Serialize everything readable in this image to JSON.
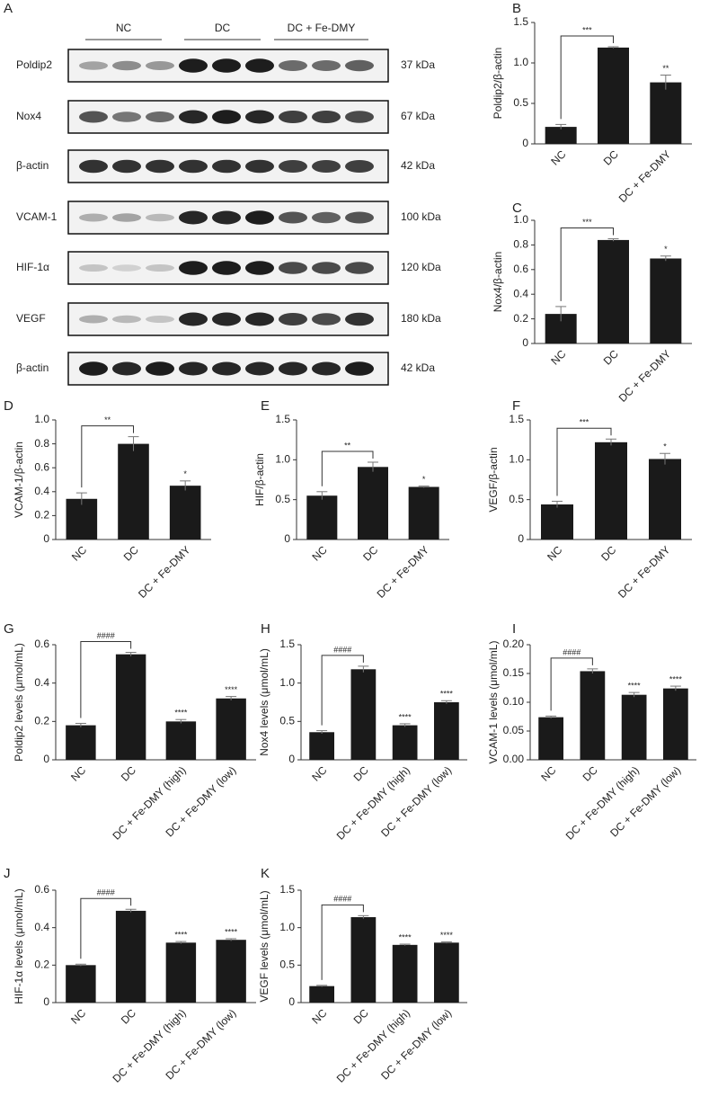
{
  "blot": {
    "label": "A",
    "groups": [
      "NC",
      "DC",
      "DC + Fe-DMY"
    ],
    "rows": [
      {
        "name": "Poldip2",
        "size": "37 kDa"
      },
      {
        "name": "Nox4",
        "size": "67 kDa"
      },
      {
        "name": "β-actin",
        "size": "42 kDa"
      },
      {
        "name": "VCAM-1",
        "size": "100 kDa"
      },
      {
        "name": "HIF-1α",
        "size": "120 kDa"
      },
      {
        "name": "VEGF",
        "size": "180 kDa"
      },
      {
        "name": "β-actin",
        "size": "42 kDa"
      }
    ]
  },
  "chart_data": [
    {
      "type": "bar",
      "panel": "B",
      "y_label": "Poldip2/β-actin",
      "categories": [
        "NC",
        "DC",
        "DC + Fe-DMY"
      ],
      "values": [
        0.21,
        1.19,
        0.76
      ],
      "errors": [
        0.03,
        0.01,
        0.09
      ],
      "color": "#1a1a1a",
      "ylim": [
        0,
        1.5
      ],
      "yticks": [
        0,
        0.5,
        {
          "value": 1,
          "label": "1.0"
        },
        1.5
      ],
      "bracket": "***",
      "significance": [
        null,
        null,
        "**"
      ]
    },
    {
      "type": "bar",
      "panel": "C",
      "y_label": "Nox4/β-actin",
      "categories": [
        "NC",
        "DC",
        "DC + Fe-DMY"
      ],
      "values": [
        0.24,
        0.84,
        0.69
      ],
      "errors": [
        0.06,
        0.01,
        0.02
      ],
      "color": "#1a1a1a",
      "ylim": [
        0,
        1
      ],
      "yticks": [
        0,
        0.2,
        0.4,
        0.6,
        0.8,
        {
          "value": 1,
          "label": "1.0"
        }
      ],
      "bracket": "***",
      "significance": [
        null,
        null,
        "*"
      ]
    },
    {
      "type": "bar",
      "panel": "D",
      "y_label": "VCAM-1/β-actin",
      "categories": [
        "NC",
        "DC",
        "DC + Fe-DMY"
      ],
      "values": [
        0.34,
        0.8,
        0.45
      ],
      "errors": [
        0.05,
        0.06,
        0.04
      ],
      "color": "#1a1a1a",
      "ylim": [
        0,
        1
      ],
      "yticks": [
        0,
        0.2,
        0.4,
        0.6,
        0.8,
        {
          "value": 1,
          "label": "1.0"
        }
      ],
      "bracket": "**",
      "significance": [
        null,
        null,
        "*"
      ]
    },
    {
      "type": "bar",
      "panel": "E",
      "y_label": "HIF/β-actin",
      "categories": [
        "NC",
        "DC",
        "DC + Fe-DMY"
      ],
      "values": [
        0.55,
        0.91,
        0.66
      ],
      "errors": [
        0.05,
        0.06,
        0.01
      ],
      "color": "#1a1a1a",
      "ylim": [
        0,
        1.5
      ],
      "yticks": [
        0,
        0.5,
        {
          "value": 1,
          "label": "1.0"
        },
        1.5
      ],
      "bracket": "**",
      "significance": [
        null,
        null,
        "*"
      ]
    },
    {
      "type": "bar",
      "panel": "F",
      "y_label": "VEGF/β-actin",
      "categories": [
        "NC",
        "DC",
        "DC + Fe-DMY"
      ],
      "values": [
        0.44,
        1.22,
        1.01
      ],
      "errors": [
        0.04,
        0.04,
        0.07
      ],
      "color": "#1a1a1a",
      "ylim": [
        0,
        1.5
      ],
      "yticks": [
        0,
        0.5,
        {
          "value": 1,
          "label": "1.0"
        },
        1.5
      ],
      "bracket": "***",
      "significance": [
        null,
        null,
        "*"
      ]
    },
    {
      "type": "bar",
      "panel": "G",
      "y_label": "Poldip2 levels (μmol/mL)",
      "categories": [
        "NC",
        "DC",
        "DC + Fe-DMY (high)",
        "DC + Fe-DMY (low)"
      ],
      "values": [
        0.18,
        0.55,
        0.2,
        0.32
      ],
      "errors": [
        0.01,
        0.01,
        0.01,
        0.01
      ],
      "color": "#1a1a1a",
      "ylim": [
        0,
        0.6
      ],
      "yticks": [
        0,
        0.2,
        0.4,
        0.6
      ],
      "bracket": "####",
      "significance": [
        null,
        null,
        "****",
        "****"
      ]
    },
    {
      "type": "bar",
      "panel": "H",
      "y_label": "Nox4 levels (μmol/mL)",
      "categories": [
        "NC",
        "DC",
        "DC + Fe-DMY (high)",
        "DC + Fe-DMY (low)"
      ],
      "values": [
        0.36,
        1.18,
        0.45,
        0.75
      ],
      "errors": [
        0.02,
        0.04,
        0.02,
        0.02
      ],
      "color": "#1a1a1a",
      "ylim": [
        0,
        1.5
      ],
      "yticks": [
        0,
        0.5,
        {
          "value": 1,
          "label": "1.0"
        },
        1.5
      ],
      "bracket": "####",
      "significance": [
        null,
        null,
        "****",
        "****"
      ]
    },
    {
      "type": "bar",
      "panel": "I",
      "y_label": "VCAM-1 levels (μmol/mL)",
      "categories": [
        "NC",
        "DC",
        "DC + Fe-DMY (high)",
        "DC + Fe-DMY (low)"
      ],
      "values": [
        0.074,
        0.154,
        0.113,
        0.124
      ],
      "errors": [
        0.002,
        0.004,
        0.004,
        0.004
      ],
      "color": "#1a1a1a",
      "ylim": [
        0,
        0.2
      ],
      "yticks": [
        {
          "value": 0,
          "label": "0.00"
        },
        0.05,
        {
          "value": 0.1,
          "label": "0.10"
        },
        0.15,
        {
          "value": 0.2,
          "label": "0.20"
        }
      ],
      "bracket": "####",
      "significance": [
        null,
        null,
        "****",
        "****"
      ]
    },
    {
      "type": "bar",
      "panel": "J",
      "y_label": "HIF-1α levels (μmol/mL)",
      "categories": [
        "NC",
        "DC",
        "DC + Fe-DMY (high)",
        "DC + Fe-DMY (low)"
      ],
      "values": [
        0.2,
        0.49,
        0.32,
        0.335
      ],
      "errors": [
        0.005,
        0.008,
        0.006,
        0.006
      ],
      "color": "#1a1a1a",
      "ylim": [
        0,
        0.6
      ],
      "yticks": [
        0,
        0.2,
        0.4,
        0.6
      ],
      "bracket": "####",
      "significance": [
        null,
        null,
        "****",
        "****"
      ]
    },
    {
      "type": "bar",
      "panel": "K",
      "y_label": "VEGF levels (μmol/mL)",
      "categories": [
        "NC",
        "DC",
        "DC + Fe-DMY (high)",
        "DC + Fe-DMY (low)"
      ],
      "values": [
        0.22,
        1.14,
        0.77,
        0.8
      ],
      "errors": [
        0.01,
        0.02,
        0.01,
        0.01
      ],
      "color": "#1a1a1a",
      "ylim": [
        0,
        1.5
      ],
      "yticks": [
        0,
        0.5,
        {
          "value": 1,
          "label": "1.0"
        },
        1.5
      ],
      "bracket": "####",
      "significance": [
        null,
        null,
        "****",
        "****"
      ]
    }
  ]
}
